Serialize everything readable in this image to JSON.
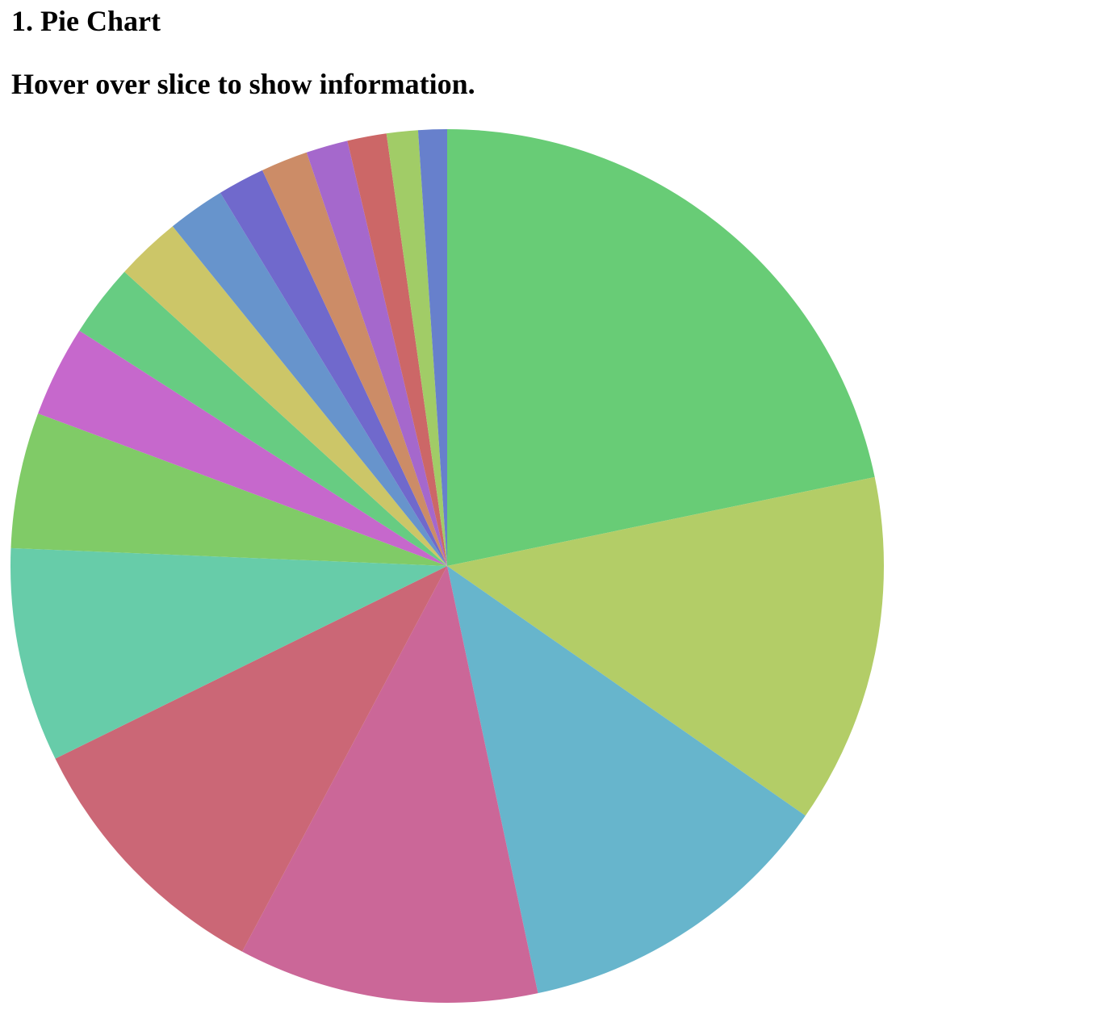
{
  "page": {
    "title": "1. Pie Chart",
    "subtitle": "Hover over slice to show information."
  },
  "chart_data": {
    "type": "pie",
    "title": "1. Pie Chart",
    "start_angle": "12 o'clock",
    "direction": "clockwise",
    "legend": "none",
    "slices": [
      {
        "value": 22.5,
        "color": "#68cc76"
      },
      {
        "value": 13.4,
        "color": "#b3cd67"
      },
      {
        "value": 12.4,
        "color": "#67b5cc"
      },
      {
        "value": 11.5,
        "color": "#cb6798"
      },
      {
        "value": 10.3,
        "color": "#cb6776"
      },
      {
        "value": 8.2,
        "color": "#67cca9"
      },
      {
        "value": 5.2,
        "color": "#80cb67"
      },
      {
        "value": 3.5,
        "color": "#c668cc"
      },
      {
        "value": 2.8,
        "color": "#67cc82"
      },
      {
        "value": 2.5,
        "color": "#ccc668"
      },
      {
        "value": 2.2,
        "color": "#6794cc"
      },
      {
        "value": 1.8,
        "color": "#7069cc"
      },
      {
        "value": 1.8,
        "color": "#cc8c67"
      },
      {
        "value": 1.6,
        "color": "#a568cc"
      },
      {
        "value": 1.5,
        "color": "#cc6767"
      },
      {
        "value": 1.2,
        "color": "#a1cc67"
      },
      {
        "value": 1.1,
        "color": "#6780cc"
      }
    ]
  }
}
